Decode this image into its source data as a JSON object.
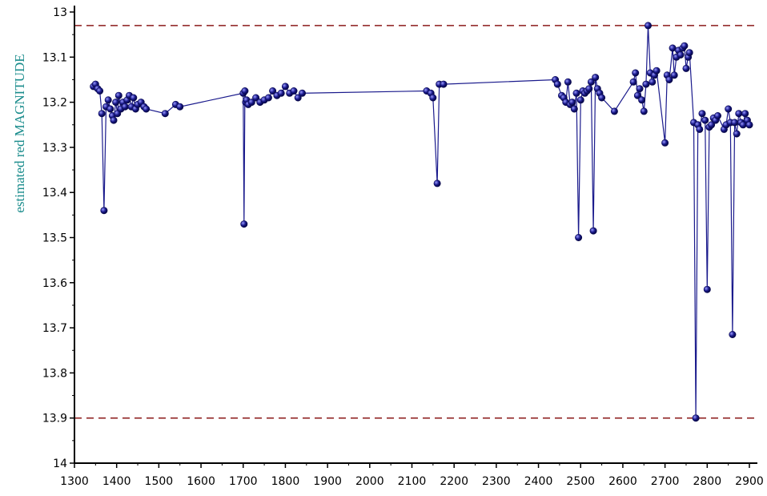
{
  "chart_data": {
    "type": "scatter",
    "title": "",
    "xlabel": "",
    "ylabel": "estimated red MAGNITUDE",
    "xlim": [
      1300,
      2900
    ],
    "ylim": [
      13.0,
      14.0
    ],
    "y_inverted": true,
    "grid": false,
    "legend": "none",
    "x_ticks": [
      1300,
      1400,
      1500,
      1600,
      1700,
      1800,
      1900,
      2000,
      2100,
      2200,
      2300,
      2400,
      2500,
      2600,
      2700,
      2800,
      2900
    ],
    "y_ticks": [
      13.0,
      13.1,
      13.2,
      13.3,
      13.4,
      13.5,
      13.6,
      13.7,
      13.8,
      13.9,
      14.0
    ],
    "y_tick_labels": [
      "13",
      "13.1",
      "13.2",
      "13.3",
      "13.4",
      "13.5",
      "13.6",
      "13.7",
      "13.8",
      "13.9",
      "14"
    ],
    "reference_lines": [
      {
        "y": 13.03,
        "style": "dashed",
        "color": "#8b1a1a"
      },
      {
        "y": 13.9,
        "style": "dashed",
        "color": "#8b1a1a"
      }
    ],
    "series": [
      {
        "color": "#1a1a8c",
        "points": [
          [
            1345,
            13.165
          ],
          [
            1350,
            13.16
          ],
          [
            1355,
            13.17
          ],
          [
            1360,
            13.175
          ],
          [
            1365,
            13.225
          ],
          [
            1370,
            13.44
          ],
          [
            1375,
            13.21
          ],
          [
            1380,
            13.195
          ],
          [
            1385,
            13.215
          ],
          [
            1390,
            13.23
          ],
          [
            1393,
            13.24
          ],
          [
            1398,
            13.2
          ],
          [
            1402,
            13.225
          ],
          [
            1405,
            13.185
          ],
          [
            1410,
            13.215
          ],
          [
            1415,
            13.2
          ],
          [
            1420,
            13.21
          ],
          [
            1425,
            13.195
          ],
          [
            1430,
            13.185
          ],
          [
            1435,
            13.21
          ],
          [
            1440,
            13.19
          ],
          [
            1445,
            13.215
          ],
          [
            1450,
            13.205
          ],
          [
            1458,
            13.2
          ],
          [
            1465,
            13.21
          ],
          [
            1470,
            13.215
          ],
          [
            1515,
            13.225
          ],
          [
            1540,
            13.205
          ],
          [
            1550,
            13.21
          ],
          [
            1700,
            13.18
          ],
          [
            1702,
            13.47
          ],
          [
            1704,
            13.175
          ],
          [
            1706,
            13.2
          ],
          [
            1708,
            13.195
          ],
          [
            1712,
            13.205
          ],
          [
            1720,
            13.2
          ],
          [
            1730,
            13.19
          ],
          [
            1740,
            13.2
          ],
          [
            1750,
            13.195
          ],
          [
            1760,
            13.19
          ],
          [
            1770,
            13.175
          ],
          [
            1780,
            13.185
          ],
          [
            1790,
            13.18
          ],
          [
            1800,
            13.165
          ],
          [
            1810,
            13.18
          ],
          [
            1820,
            13.175
          ],
          [
            1830,
            13.19
          ],
          [
            1840,
            13.18
          ],
          [
            2135,
            13.175
          ],
          [
            2145,
            13.18
          ],
          [
            2150,
            13.19
          ],
          [
            2160,
            13.38
          ],
          [
            2165,
            13.16
          ],
          [
            2175,
            13.16
          ],
          [
            2440,
            13.15
          ],
          [
            2445,
            13.16
          ],
          [
            2455,
            13.185
          ],
          [
            2460,
            13.19
          ],
          [
            2465,
            13.2
          ],
          [
            2470,
            13.155
          ],
          [
            2475,
            13.205
          ],
          [
            2480,
            13.2
          ],
          [
            2485,
            13.215
          ],
          [
            2490,
            13.18
          ],
          [
            2495,
            13.5
          ],
          [
            2500,
            13.195
          ],
          [
            2505,
            13.175
          ],
          [
            2510,
            13.18
          ],
          [
            2515,
            13.175
          ],
          [
            2520,
            13.17
          ],
          [
            2525,
            13.155
          ],
          [
            2530,
            13.485
          ],
          [
            2535,
            13.145
          ],
          [
            2540,
            13.17
          ],
          [
            2545,
            13.18
          ],
          [
            2550,
            13.19
          ],
          [
            2580,
            13.22
          ],
          [
            2625,
            13.155
          ],
          [
            2630,
            13.135
          ],
          [
            2635,
            13.185
          ],
          [
            2640,
            13.17
          ],
          [
            2645,
            13.195
          ],
          [
            2650,
            13.22
          ],
          [
            2655,
            13.16
          ],
          [
            2660,
            13.03
          ],
          [
            2665,
            13.135
          ],
          [
            2670,
            13.155
          ],
          [
            2675,
            13.14
          ],
          [
            2680,
            13.13
          ],
          [
            2700,
            13.29
          ],
          [
            2705,
            13.14
          ],
          [
            2710,
            13.15
          ],
          [
            2718,
            13.08
          ],
          [
            2722,
            13.14
          ],
          [
            2727,
            13.1
          ],
          [
            2732,
            13.085
          ],
          [
            2737,
            13.095
          ],
          [
            2742,
            13.08
          ],
          [
            2746,
            13.075
          ],
          [
            2750,
            13.125
          ],
          [
            2755,
            13.1
          ],
          [
            2758,
            13.09
          ],
          [
            2768,
            13.245
          ],
          [
            2773,
            13.9
          ],
          [
            2778,
            13.25
          ],
          [
            2782,
            13.26
          ],
          [
            2788,
            13.225
          ],
          [
            2795,
            13.24
          ],
          [
            2800,
            13.615
          ],
          [
            2805,
            13.255
          ],
          [
            2810,
            13.25
          ],
          [
            2815,
            13.235
          ],
          [
            2820,
            13.24
          ],
          [
            2825,
            13.23
          ],
          [
            2840,
            13.26
          ],
          [
            2845,
            13.25
          ],
          [
            2850,
            13.215
          ],
          [
            2855,
            13.245
          ],
          [
            2860,
            13.715
          ],
          [
            2865,
            13.245
          ],
          [
            2870,
            13.27
          ],
          [
            2875,
            13.225
          ],
          [
            2880,
            13.245
          ],
          [
            2885,
            13.25
          ],
          [
            2890,
            13.225
          ],
          [
            2895,
            13.24
          ],
          [
            2900,
            13.25
          ]
        ]
      }
    ]
  }
}
